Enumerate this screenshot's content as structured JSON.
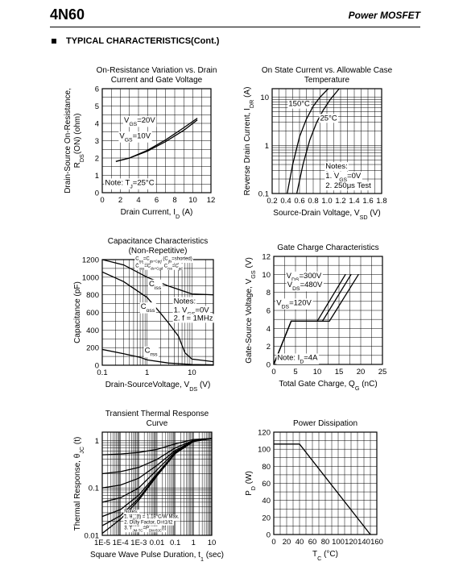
{
  "header": {
    "part_number": "4N60",
    "product_type": "Power MOSFET"
  },
  "section": {
    "title": "TYPICAL CHARACTERISTICS(Cont.)"
  },
  "chart_data": [
    {
      "id": "rds",
      "type": "line",
      "title": [
        "On-Resistance Variation vs. Drain",
        "Current and Gate Voltage"
      ],
      "xlabel": "Drain Current, I_D (A)",
      "ylabel": [
        "Drain-Source On-Resistance,",
        "R_DS(ON) (ohm)"
      ],
      "xlim": [
        0,
        12
      ],
      "ylim": [
        0,
        6
      ],
      "xticks": [
        0,
        2,
        4,
        6,
        8,
        10,
        12
      ],
      "yticks": [
        0,
        1,
        2,
        3,
        4,
        5,
        6
      ],
      "grid": true,
      "series": [
        {
          "name": "V_GS=20V",
          "x": [
            1.5,
            3,
            5,
            7,
            9,
            10.5
          ],
          "y": [
            1.8,
            2.0,
            2.45,
            3.05,
            3.75,
            4.3
          ]
        },
        {
          "name": "V_GS=10V",
          "x": [
            1.5,
            3,
            5,
            7,
            9,
            10.5
          ],
          "y": [
            1.8,
            2.0,
            2.4,
            2.95,
            3.6,
            4.2
          ]
        }
      ],
      "annotations": [
        {
          "text": "V_GS=20V",
          "x": 2.4,
          "y": 4.05
        },
        {
          "text": "V_GS=10V",
          "x": 1.9,
          "y": 3.15
        },
        {
          "text": "Note: T_J=25°C",
          "x": 0.3,
          "y": 0.45
        }
      ]
    },
    {
      "id": "body_diode",
      "type": "line",
      "title": [
        "On State Current vs. Allowable Case",
        "Temperature"
      ],
      "xlabel": "Source-Drain Voltage, V_SD (V)",
      "ylabel": [
        "Reverse Drain Current, I_DR (A)"
      ],
      "xlim": [
        0.2,
        1.8
      ],
      "ylim": [
        0.1,
        15
      ],
      "yscale": "log",
      "xticks": [
        0.2,
        0.4,
        0.6,
        0.8,
        1.0,
        1.2,
        1.4,
        1.6,
        1.8
      ],
      "xtick_labels": [
        "0.2",
        "0.4",
        "0.6",
        "0.8",
        "1.0",
        "1.2",
        "1.4",
        "1.6",
        "1.8"
      ],
      "yticks": [
        0.1,
        1,
        10
      ],
      "ytick_labels": [
        "0.1",
        "1",
        "10"
      ],
      "grid": true,
      "series": [
        {
          "name": "150°C",
          "x": [
            0.42,
            0.5,
            0.6,
            0.7,
            0.8,
            0.9,
            1.02
          ],
          "y": [
            0.1,
            0.4,
            1.5,
            3.5,
            6.5,
            10,
            15
          ]
        },
        {
          "name": "25°C",
          "x": [
            0.56,
            0.65,
            0.75,
            0.85,
            0.95,
            1.05,
            1.18
          ],
          "y": [
            0.1,
            0.4,
            1.3,
            3,
            5.5,
            9,
            15
          ]
        }
      ],
      "annotations": [
        {
          "text": "150°C",
          "x": 0.44,
          "y": 6.5
        },
        {
          "text": "25°C",
          "x": 0.9,
          "y": 3.3
        },
        {
          "text": "Notes:",
          "x": 0.98,
          "y": 0.33
        },
        {
          "text": "1. V_GS=0V",
          "x": 0.98,
          "y": 0.21
        },
        {
          "text": "2. 250μs Test",
          "x": 0.98,
          "y": 0.13
        }
      ]
    },
    {
      "id": "capacitance",
      "type": "line",
      "title": [
        "Capacitance Characteristics",
        "(Non-Repetitive)"
      ],
      "xlabel": "Drain-SourceVoltage, V_DS (V)",
      "ylabel": [
        "Capacitance (pF)"
      ],
      "xlim": [
        0.1,
        30
      ],
      "ylim": [
        0,
        1200
      ],
      "xscale": "log",
      "xticks": [
        0.1,
        1,
        10
      ],
      "xtick_labels": [
        "0.1",
        "1",
        "10"
      ],
      "yticks": [
        0,
        200,
        400,
        600,
        800,
        1000,
        1200
      ],
      "grid": true,
      "series": [
        {
          "name": "C_iss",
          "x": [
            0.1,
            0.3,
            1,
            3,
            10,
            30
          ],
          "y": [
            1200,
            1140,
            1000,
            900,
            810,
            800
          ]
        },
        {
          "name": "C_oss",
          "x": [
            0.1,
            0.3,
            1,
            2,
            3,
            5,
            7,
            10,
            30
          ],
          "y": [
            1060,
            950,
            770,
            590,
            480,
            330,
            140,
            70,
            40
          ]
        },
        {
          "name": "C_rss",
          "x": [
            0.1,
            0.3,
            0.7,
            1,
            3,
            10,
            30
          ],
          "y": [
            180,
            130,
            90,
            60,
            25,
            8,
            5
          ]
        }
      ],
      "annotations": [
        {
          "text": "C_iss=C_gs+C_gd (C_ds=shorted)",
          "x": 0.55,
          "y": 1195
        },
        {
          "text": "C_oss=C_ds+C_gd  C_rss=C_gd",
          "x": 0.55,
          "y": 1115
        },
        {
          "text": "C_iss",
          "x": 1.1,
          "y": 900
        },
        {
          "text": "C_oss",
          "x": 0.72,
          "y": 640
        },
        {
          "text": "C_rss",
          "x": 0.88,
          "y": 140
        },
        {
          "text": "Notes:",
          "x": 3.9,
          "y": 700
        },
        {
          "text": "1. V_GS=0V",
          "x": 3.9,
          "y": 600
        },
        {
          "text": "2. f = 1MHz",
          "x": 3.9,
          "y": 510
        }
      ]
    },
    {
      "id": "gate_charge",
      "type": "line",
      "title": [
        "Gate Charge Characteristics"
      ],
      "xlabel": "Total Gate Charge, Q_G (nC)",
      "ylabel": [
        "Gate-Source Voltage, V_GS (V)"
      ],
      "xlim": [
        0,
        25
      ],
      "ylim": [
        0,
        12
      ],
      "xticks": [
        0,
        5,
        10,
        15,
        20,
        25
      ],
      "yticks": [
        0,
        2,
        4,
        6,
        8,
        10,
        12
      ],
      "grid": true,
      "series": [
        {
          "name": "V_DS=120V",
          "x": [
            0,
            4,
            10,
            16.5
          ],
          "y": [
            0,
            4.8,
            4.8,
            10
          ]
        },
        {
          "name": "V_DS=300V",
          "x": [
            0,
            4,
            11.2,
            17.8
          ],
          "y": [
            0,
            4.8,
            4.8,
            10
          ]
        },
        {
          "name": "V_DS=480V",
          "x": [
            0,
            4,
            12.8,
            19.5
          ],
          "y": [
            0,
            4.8,
            4.8,
            10
          ]
        }
      ],
      "annotations": [
        {
          "text": "V_DS=300V",
          "x": 2.9,
          "y": 9.6
        },
        {
          "text": "V_DS=480V",
          "x": 3.1,
          "y": 8.6
        },
        {
          "text": "V_DS=120V",
          "x": 0.6,
          "y": 6.6
        },
        {
          "text": "Note: I_D=4A",
          "x": 0.8,
          "y": 0.5
        }
      ]
    },
    {
      "id": "thermal",
      "type": "line",
      "title": [
        "Transient Thermal Response",
        "Curve"
      ],
      "xlabel": "Square Wave Pulse Duration, t_1 (sec)",
      "ylabel": [
        "Thermal Response, θ_JC (t)"
      ],
      "xlim": [
        1e-05,
        10
      ],
      "ylim": [
        0.01,
        1.5
      ],
      "xscale": "log",
      "yscale": "log",
      "xticks": [
        1e-05,
        0.0001,
        0.001,
        0.01,
        0.1,
        1,
        10
      ],
      "xtick_labels": [
        "1E-5",
        "1E-4",
        "1E-3",
        "0.01",
        "0.1",
        "1",
        "10"
      ],
      "yticks": [
        0.01,
        0.1,
        1
      ],
      "ytick_labels": [
        "0.01",
        "0.1",
        "1"
      ],
      "grid": true,
      "series": [
        {
          "name": "D=0.5",
          "x": [
            1e-05,
            0.0001,
            0.001,
            0.01,
            0.1,
            1,
            10
          ],
          "y": [
            0.5,
            0.52,
            0.56,
            0.65,
            0.85,
            1.05,
            1.1
          ]
        },
        {
          "name": "D=0.2",
          "x": [
            1e-05,
            0.0001,
            0.001,
            0.01,
            0.1,
            1,
            10
          ],
          "y": [
            0.2,
            0.22,
            0.27,
            0.4,
            0.7,
            1.0,
            1.1
          ]
        },
        {
          "name": "D=0.1",
          "x": [
            1e-05,
            0.0001,
            0.001,
            0.01,
            0.1,
            1,
            10
          ],
          "y": [
            0.1,
            0.115,
            0.16,
            0.3,
            0.62,
            0.98,
            1.1
          ]
        },
        {
          "name": "D=0.05",
          "x": [
            1e-05,
            0.0001,
            0.001,
            0.01,
            0.1,
            1,
            10
          ],
          "y": [
            0.05,
            0.062,
            0.1,
            0.24,
            0.58,
            0.97,
            1.1
          ]
        },
        {
          "name": "D=0.02",
          "x": [
            1e-05,
            0.0001,
            0.001,
            0.01,
            0.1,
            1,
            10
          ],
          "y": [
            0.025,
            0.035,
            0.07,
            0.2,
            0.55,
            0.96,
            1.1
          ]
        },
        {
          "name": "D=0.01",
          "x": [
            1e-05,
            0.0001,
            0.001,
            0.01,
            0.1,
            1,
            10
          ],
          "y": [
            0.016,
            0.026,
            0.06,
            0.19,
            0.54,
            0.96,
            1.1
          ]
        },
        {
          "name": "single pulse",
          "x": [
            1e-05,
            0.0001,
            0.001,
            0.01,
            0.1,
            1,
            10
          ],
          "y": [
            0.011,
            0.022,
            0.055,
            0.18,
            0.53,
            0.95,
            1.1
          ]
        }
      ],
      "annotations": [
        {
          "text": "Notes:",
          "x": 0.00016,
          "y": 0.03
        },
        {
          "text": "1. θ_JC(t) = 1.18°C/W Max.",
          "x": 0.00016,
          "y": 0.023
        },
        {
          "text": "2. Duty Factor, D=t1/t2",
          "x": 0.00016,
          "y": 0.0175
        },
        {
          "text": "3. T_JM-T_C=P_DM·θ_JC(t)",
          "x": 0.00016,
          "y": 0.0133
        }
      ]
    },
    {
      "id": "power",
      "type": "line",
      "title": [
        "Power Dissipation"
      ],
      "xlabel": "T_C (°C)",
      "ylabel": [
        "P_D (W)"
      ],
      "xlim": [
        0,
        160
      ],
      "ylim": [
        0,
        120
      ],
      "xticks": [
        0,
        20,
        40,
        60,
        80,
        100,
        120,
        140,
        160
      ],
      "yticks": [
        0,
        20,
        40,
        60,
        80,
        100,
        120
      ],
      "grid": true,
      "series": [
        {
          "name": "P_D",
          "x": [
            0,
            40,
            150
          ],
          "y": [
            106,
            106,
            0
          ]
        }
      ],
      "annotations": []
    }
  ]
}
